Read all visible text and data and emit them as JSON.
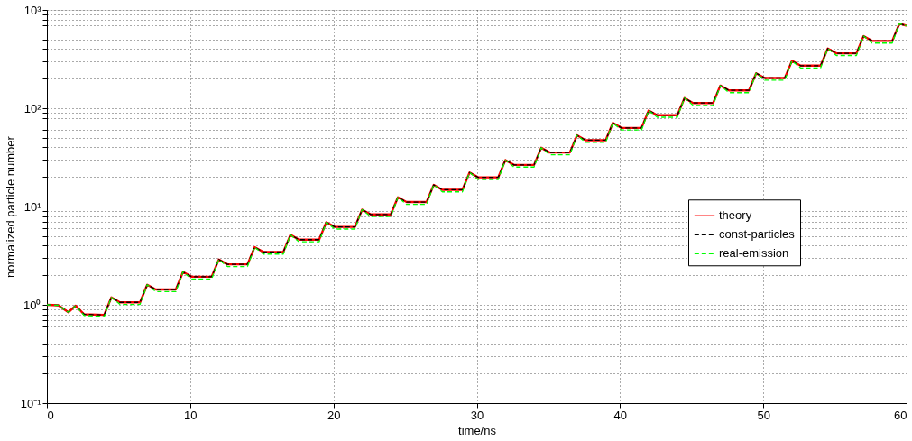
{
  "chart_data": {
    "type": "line",
    "xlabel": "time/ns",
    "ylabel": "normalized particle number",
    "x": [
      0,
      0.8,
      1.5,
      2.0,
      2.6,
      4.0,
      4.5,
      5.1,
      6.5,
      7.0,
      7.6,
      9.0,
      9.5,
      10.1,
      11.5,
      12.0,
      12.6,
      14.0,
      14.5,
      15.1,
      16.5,
      17.0,
      17.6,
      19.0,
      19.5,
      20.1,
      21.5,
      22.0,
      22.6,
      24.0,
      24.5,
      25.1,
      26.5,
      27.0,
      27.6,
      29.0,
      29.5,
      30.1,
      31.5,
      32.0,
      32.6,
      34.0,
      34.5,
      35.1,
      36.5,
      37.0,
      37.6,
      39.0,
      39.5,
      40.1,
      41.5,
      42.0,
      42.6,
      44.0,
      44.5,
      45.1,
      46.5,
      47.0,
      47.6,
      49.0,
      49.5,
      50.1,
      51.5,
      52.0,
      52.6,
      54.0,
      54.5,
      55.1,
      56.5,
      57.0,
      57.6,
      59.0,
      59.5,
      60.0
    ],
    "series": [
      {
        "name": "theory",
        "color": "#ff0000",
        "line_style": "solid",
        "values": [
          1.0,
          0.99,
          0.84,
          0.98,
          0.8,
          0.79,
          1.19,
          1.06,
          1.06,
          1.6,
          1.43,
          1.43,
          2.16,
          1.93,
          1.93,
          2.89,
          2.58,
          2.58,
          3.86,
          3.45,
          3.45,
          5.15,
          4.6,
          4.6,
          6.9,
          6.2,
          6.2,
          9.3,
          8.3,
          8.3,
          12.4,
          11.1,
          11.1,
          16.6,
          14.8,
          14.8,
          22.2,
          19.8,
          19.8,
          29.7,
          26.5,
          26.5,
          39.6,
          35.4,
          35.4,
          53,
          47.3,
          47.3,
          71,
          63,
          63,
          95,
          85,
          85,
          127,
          113,
          113,
          170,
          152,
          152,
          227,
          203,
          203,
          304,
          271,
          271,
          405,
          362,
          362,
          542,
          484,
          484,
          725,
          690
        ]
      },
      {
        "name": "const-particles",
        "color": "#000000",
        "line_style": "dashed",
        "values": [
          1.0,
          0.99,
          0.84,
          0.98,
          0.8,
          0.79,
          1.19,
          1.06,
          1.06,
          1.6,
          1.43,
          1.43,
          2.16,
          1.93,
          1.93,
          2.89,
          2.58,
          2.58,
          3.86,
          3.45,
          3.45,
          5.15,
          4.6,
          4.6,
          6.9,
          6.2,
          6.2,
          9.3,
          8.3,
          8.3,
          12.4,
          11.1,
          11.1,
          16.6,
          14.8,
          14.8,
          22.2,
          19.8,
          19.8,
          29.7,
          26.5,
          26.5,
          39.6,
          35.4,
          35.4,
          53,
          47.3,
          47.3,
          71,
          63,
          63,
          95,
          85,
          85,
          127,
          113,
          113,
          170,
          152,
          152,
          227,
          203,
          203,
          304,
          271,
          271,
          405,
          362,
          362,
          542,
          484,
          484,
          725,
          690
        ]
      },
      {
        "name": "real-emission",
        "color": "#00ff00",
        "line_style": "dashed",
        "values": [
          1.0,
          0.99,
          0.84,
          0.98,
          0.78,
          0.76,
          1.19,
          1.01,
          1.01,
          1.6,
          1.36,
          1.36,
          2.16,
          1.83,
          1.83,
          2.89,
          2.45,
          2.45,
          3.86,
          3.28,
          3.28,
          5.15,
          4.37,
          4.37,
          6.9,
          5.9,
          5.9,
          9.3,
          7.9,
          7.9,
          12.4,
          10.5,
          10.5,
          16.6,
          14.1,
          14.1,
          22.2,
          18.8,
          18.8,
          29.7,
          25.2,
          25.2,
          39.6,
          33.6,
          33.6,
          53,
          45,
          45,
          71,
          60,
          60,
          95,
          81,
          81,
          127,
          107,
          107,
          170,
          144,
          144,
          227,
          193,
          193,
          304,
          257,
          257,
          405,
          344,
          344,
          542,
          460,
          460,
          725,
          690
        ]
      }
    ],
    "xlim": [
      0,
      60
    ],
    "xticks": [
      0,
      10,
      20,
      30,
      40,
      50,
      60
    ],
    "ylim": [
      0.1,
      1000
    ],
    "log": "y",
    "yticks": [
      {
        "value": 0.1,
        "label": "10⁻¹"
      },
      {
        "value": 0.2,
        "label": null
      },
      {
        "value": 0.3,
        "label": null
      },
      {
        "value": 0.4,
        "label": null
      },
      {
        "value": 0.5,
        "label": null
      },
      {
        "value": 0.6,
        "label": null
      },
      {
        "value": 0.7,
        "label": null
      },
      {
        "value": 0.8,
        "label": null
      },
      {
        "value": 0.9,
        "label": null
      },
      {
        "value": 1,
        "label": "10⁰"
      },
      {
        "value": 2,
        "label": null
      },
      {
        "value": 3,
        "label": null
      },
      {
        "value": 4,
        "label": null
      },
      {
        "value": 5,
        "label": null
      },
      {
        "value": 6,
        "label": null
      },
      {
        "value": 7,
        "label": null
      },
      {
        "value": 8,
        "label": null
      },
      {
        "value": 9,
        "label": null
      },
      {
        "value": 10,
        "label": "10¹"
      },
      {
        "value": 20,
        "label": null
      },
      {
        "value": 30,
        "label": null
      },
      {
        "value": 40,
        "label": null
      },
      {
        "value": 50,
        "label": null
      },
      {
        "value": 60,
        "label": null
      },
      {
        "value": 70,
        "label": null
      },
      {
        "value": 80,
        "label": null
      },
      {
        "value": 90,
        "label": null
      },
      {
        "value": 100,
        "label": "10²"
      },
      {
        "value": 200,
        "label": null
      },
      {
        "value": 300,
        "label": null
      },
      {
        "value": 400,
        "label": null
      },
      {
        "value": 500,
        "label": null
      },
      {
        "value": 600,
        "label": null
      },
      {
        "value": 700,
        "label": null
      },
      {
        "value": 800,
        "label": null
      },
      {
        "value": 900,
        "label": null
      },
      {
        "value": 1000,
        "label": "10³"
      }
    ],
    "grid": true,
    "legend": "right",
    "marker": "none"
  }
}
